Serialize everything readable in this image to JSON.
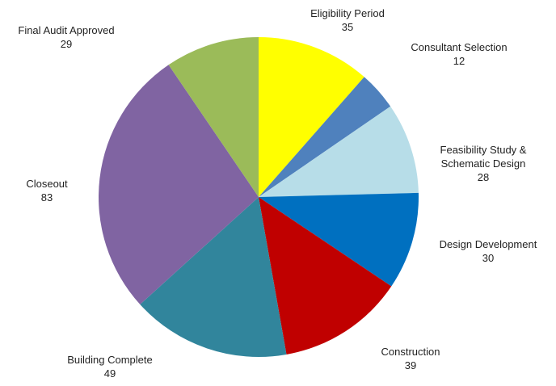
{
  "chart_data": {
    "type": "pie",
    "title": "",
    "start_angle_deg": 0,
    "direction": "clockwise",
    "slices": [
      {
        "label_lines": [
          "Eligibility Period"
        ],
        "value": 35,
        "color": "#FFFF00"
      },
      {
        "label_lines": [
          "Consultant Selection"
        ],
        "value": 12,
        "color": "#4F81BD"
      },
      {
        "label_lines": [
          "Feasibility Study &",
          "Schematic Design"
        ],
        "value": 28,
        "color": "#B7DDE8"
      },
      {
        "label_lines": [
          "Design Development"
        ],
        "value": 30,
        "color": "#0070C0"
      },
      {
        "label_lines": [
          "Construction"
        ],
        "value": 39,
        "color": "#C00000"
      },
      {
        "label_lines": [
          "Building Complete"
        ],
        "value": 49,
        "color": "#31859C"
      },
      {
        "label_lines": [
          "Closeout"
        ],
        "value": 83,
        "color": "#8064A2"
      },
      {
        "label_lines": [
          "Final Audit Approved"
        ],
        "value": 29,
        "color": "#9BBB59"
      }
    ]
  }
}
